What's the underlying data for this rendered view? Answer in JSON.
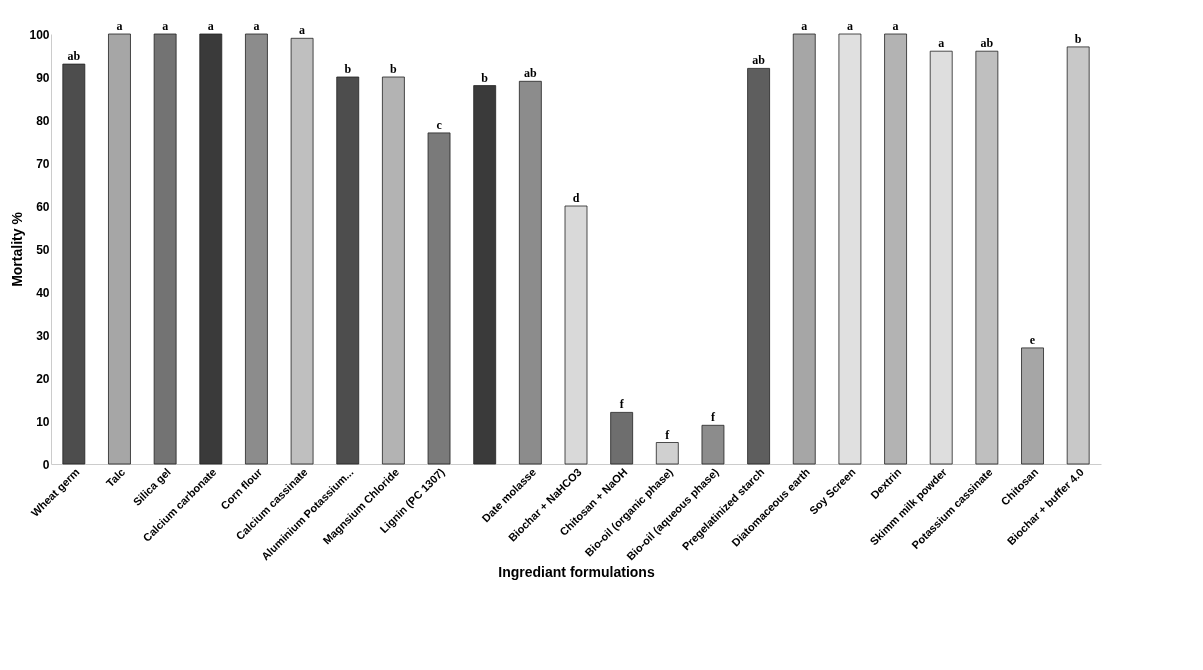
{
  "chart_data": {
    "type": "bar",
    "xlabel": "Ingrediant formulations",
    "ylabel": "Mortality %",
    "categories": [
      "Wheat germ",
      "Talc",
      "Silica gel",
      "Calcium carbonate",
      "Corn flour",
      "Calcium cassinate",
      "Aluminium Potassium...",
      "Magnsium Chloride",
      "Lignin (PC 1307)",
      null,
      "Date molasse",
      "Biochar + NaHCO3",
      "Chitosan + NaOH",
      "Bio-oil (organic phase)",
      "Bio-oil (aqueous phase)",
      "Pregelatinized starch",
      "Diatomaceous earth",
      "Soy Screen",
      "Dextrin",
      "Skimm milk powder",
      "Potassium cassinate",
      "Chitosan",
      "Biochar + buffer 4.0"
    ],
    "values": [
      93,
      100,
      100,
      100,
      100,
      99,
      90,
      90,
      77,
      88,
      89,
      60,
      12,
      5,
      9,
      92,
      100,
      100,
      100,
      96,
      96,
      27,
      97
    ],
    "value_labels": [
      "ab",
      "a",
      "a",
      "a",
      "a",
      "a",
      "b",
      "b",
      "c",
      "b",
      "ab",
      "d",
      "f",
      "f",
      "f",
      "ab",
      "a",
      "a",
      "a",
      "a",
      "ab",
      "e",
      "b"
    ],
    "colors": [
      "#4d4d4d",
      "#a6a6a6",
      "#737373",
      "#3a3a3a",
      "#8c8c8c",
      "#bfbfbf",
      "#4d4d4d",
      "#b3b3b3",
      "#7a7a7a",
      "#3a3a3a",
      "#8c8c8c",
      "#d9d9d9",
      "#6e6e6e",
      "#d0d0d0",
      "#8c8c8c",
      "#5e5e5e",
      "#a6a6a6",
      "#e0e0e0",
      "#b3b3b3",
      "#dedede",
      "#bfbfbf",
      "#a6a6a6",
      "#c8c8c8"
    ],
    "ylim": [
      0,
      100
    ],
    "yticks": [
      0,
      10,
      20,
      30,
      40,
      50,
      60,
      70,
      80,
      90,
      100
    ],
    "grid": false
  }
}
